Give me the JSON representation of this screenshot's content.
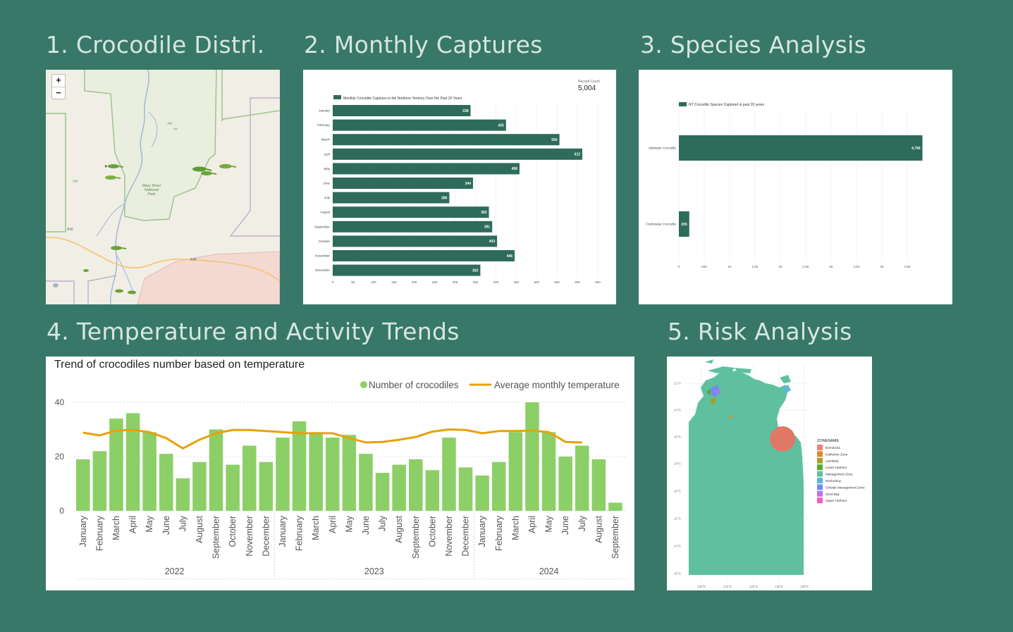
{
  "sections": {
    "s1": "1. Crocodile Distri...",
    "s2": "2. Monthly Captures",
    "s3": "3. Species Analysis",
    "s4": "4. Temperature and Activity Trends",
    "s5": "5. Risk Analysis"
  },
  "map": {
    "zoom_in": "+",
    "zoom_out": "−",
    "park_label_1": "Mary River",
    "park_label_2": "National",
    "park_label_3": "Park",
    "road_1": "A36",
    "road_2": "A36",
    "crocodile_marker_count": 9
  },
  "chart_data": [
    {
      "id": "monthly_captures",
      "type": "bar",
      "orientation": "horizontal",
      "legend": "Monthly Crocodile Captures in the Northern Territory Over the Past 20 Years",
      "record_count_label": "Record Count",
      "record_count_value": "5,004",
      "categories": [
        "January",
        "February",
        "March",
        "April",
        "May",
        "June",
        "July",
        "August",
        "September",
        "October",
        "November",
        "December"
      ],
      "values": [
        338,
        425,
        556,
        612,
        458,
        344,
        286,
        383,
        391,
        403,
        446,
        362
      ],
      "xlim": [
        0,
        650
      ],
      "xticks": [
        0,
        50,
        100,
        150,
        200,
        250,
        300,
        350,
        400,
        450,
        500,
        550,
        600,
        650
      ],
      "color": "#2e6b5a"
    },
    {
      "id": "species",
      "type": "bar",
      "orientation": "horizontal",
      "legend": "NT Crocodile Species Captured in past 20 years",
      "categories": [
        "Saltwater Crocodile",
        "Freshwater Crocodile"
      ],
      "values": [
        4799,
        205
      ],
      "value_labels": [
        "4,799",
        "205"
      ],
      "xlim": [
        0,
        5000
      ],
      "xticks": [
        0,
        500,
        1000,
        1500,
        2000,
        2500,
        3000,
        3500,
        4000,
        4500
      ],
      "xtick_labels": [
        "0",
        "500",
        "1K",
        "1.5K",
        "2K",
        "2.5K",
        "3K",
        "3.5K",
        "4K",
        "4.5K"
      ],
      "color": "#2e6b5a"
    },
    {
      "id": "temperature_trend",
      "type": "bar+line",
      "title": "Trend of crocodiles number based on temperature",
      "legend": [
        "Number of crocodiles",
        "Average monthly temperature"
      ],
      "months": [
        "January",
        "February",
        "March",
        "April",
        "May",
        "June",
        "July",
        "August",
        "September",
        "October",
        "November",
        "December",
        "January",
        "February",
        "March",
        "April",
        "May",
        "June",
        "July",
        "August",
        "September",
        "October",
        "November",
        "December",
        "January",
        "February",
        "March",
        "April",
        "May",
        "June",
        "July",
        "August",
        "September"
      ],
      "years": [
        {
          "label": "2022",
          "count": 12
        },
        {
          "label": "2023",
          "count": 12
        },
        {
          "label": "2024",
          "count": 9
        }
      ],
      "crocodiles": [
        19,
        22,
        34,
        36,
        29,
        21,
        12,
        18,
        30,
        17,
        24,
        18,
        27,
        33,
        29,
        27,
        28,
        21,
        14,
        17,
        19,
        15,
        27,
        16,
        13,
        18,
        29,
        40,
        29,
        20,
        24,
        19,
        3
      ],
      "temperature": [
        28.8,
        27.8,
        29.6,
        29.8,
        29.0,
        26.8,
        23.0,
        26.2,
        28.6,
        29.8,
        29.8,
        29.4,
        29.0,
        28.6,
        28.6,
        28.6,
        26.8,
        25.2,
        25.4,
        26.2,
        27.2,
        29.2,
        30.0,
        29.8,
        28.6,
        29.4,
        29.4,
        29.6,
        29.0,
        25.4,
        25.2
      ],
      "yticks": [
        0,
        20,
        40
      ],
      "ylim": [
        0,
        42
      ],
      "bar_color": "#8ccf66",
      "line_color": "#e8a10c"
    },
    {
      "id": "risk_map",
      "type": "map",
      "legend_title": "ZONENAME",
      "zones": [
        {
          "name": "Borroloola",
          "color": "#f08070"
        },
        {
          "name": "Katherine Zone",
          "color": "#d98c2a"
        },
        {
          "name": "Litchfield",
          "color": "#a8a028"
        },
        {
          "name": "Lower Harbour",
          "color": "#5aa830"
        },
        {
          "name": "Management Zone",
          "color": "#5fc0a0"
        },
        {
          "name": "Nhulunbuy",
          "color": "#5ab8d8"
        },
        {
          "name": "Outside Management Zone",
          "color": "#6e8ef0"
        },
        {
          "name": "Stool Bay",
          "color": "#c070e8"
        },
        {
          "name": "Upper Harbour",
          "color": "#f060c0"
        }
      ],
      "lat_labels": [
        "12°S",
        "14°S",
        "16°S",
        "18°S",
        "20°S",
        "22°S",
        "24°S",
        "26°S"
      ],
      "lon_labels": [
        "130°E",
        "132°E",
        "134°E",
        "136°E",
        "138°E"
      ]
    }
  ]
}
